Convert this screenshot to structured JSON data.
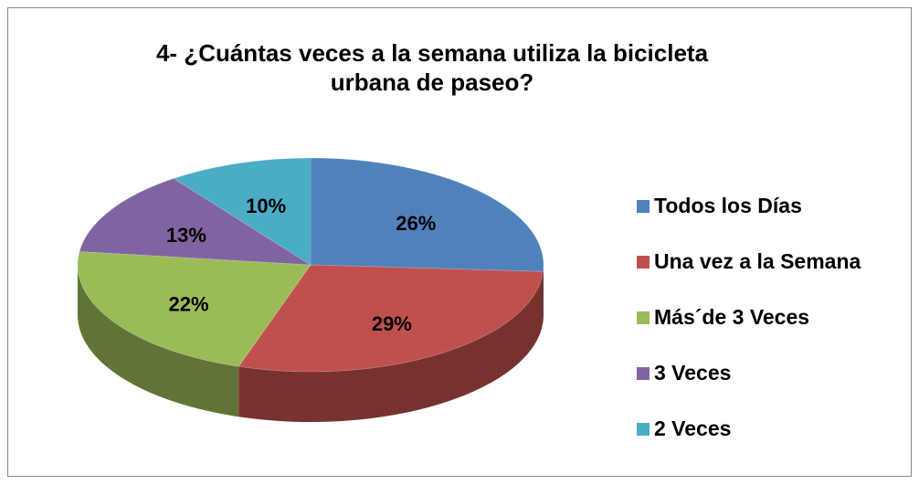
{
  "chart_data": {
    "type": "pie",
    "title": "4- ¿Cuántas veces a la semana utiliza la bicicleta urbana de paseo?",
    "categories": [
      "Todos los Días",
      "Una vez a la Semana",
      "Más´de 3 Veces",
      "3 Veces",
      "2 Veces"
    ],
    "values": [
      26,
      29,
      22,
      13,
      10
    ],
    "value_labels": [
      "26%",
      "29%",
      "22%",
      "13%",
      "10%"
    ],
    "colors": [
      "#4f81bd",
      "#c0504d",
      "#9bbb59",
      "#8064a2",
      "#4bacc6"
    ],
    "legend": "right"
  }
}
